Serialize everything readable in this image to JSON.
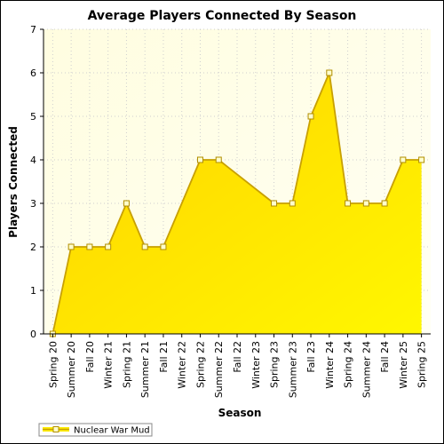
{
  "chart_data": {
    "type": "area",
    "title": "Average Players Connected By Season",
    "xlabel": "Season",
    "ylabel": "Players Connected",
    "ylim": [
      0,
      7
    ],
    "y_ticks": [
      0,
      1,
      2,
      3,
      4,
      5,
      6,
      7
    ],
    "grid": true,
    "legend_position": "bottom-left",
    "categories": [
      "Spring 20",
      "Summer 20",
      "Fall 20",
      "Winter 21",
      "Spring 21",
      "Summer 21",
      "Fall 21",
      "Winter 22",
      "Spring 22",
      "Summer 22",
      "Fall 22",
      "Winter 23",
      "Spring 23",
      "Summer 23",
      "Fall 23",
      "Winter 24",
      "Spring 24",
      "Summer 24",
      "Fall 24",
      "Winter 25",
      "Spring 25"
    ],
    "series": [
      {
        "name": "Nuclear War Mud",
        "values": [
          0,
          2,
          2,
          2,
          3,
          2,
          2,
          null,
          4,
          4,
          null,
          null,
          3,
          3,
          5,
          6,
          3,
          3,
          3,
          4,
          4
        ],
        "color": "#ffee00",
        "line_color": "#c8a000",
        "marker_fill": "#ffffcc"
      }
    ],
    "plot_background": "#ffffe8"
  }
}
